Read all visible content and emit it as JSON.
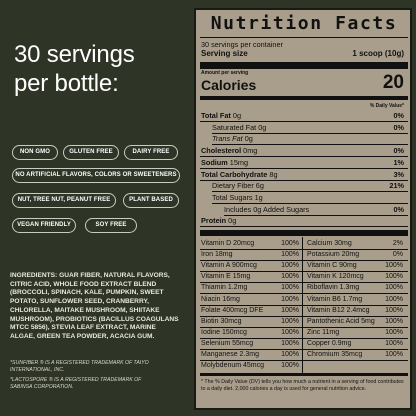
{
  "left": {
    "headline_line1": "30 servings",
    "headline_line2": "per bottle:",
    "badges": [
      "NON GMO",
      "GLUTEN FREE",
      "DAIRY FREE",
      "NO ARTIFICIAL FLAVORS, COLORS OR SWEETENERS",
      "NUT, TREE NUT, PEANUT FREE",
      "PLANT BASED",
      "VEGAN FRIENDLY",
      "SOY FREE"
    ],
    "ingredients": "INGREDIENTS: GUAR FIBER, NATURAL FLAVORS, CITRIC ACID, WHOLE FOOD EXTRACT BLEND (BROCCOLI, SPINACH, KALE, PUMPKIN, SWEET POTATO, SUNFLOWER SEED, CRANBERRY, CHLORELLA, MAITAKE MUSHROOM, SHIITAKE MUSHROOM), PROBIOTICS (BACILLUS COAGULANS MTCC 5856), STEVIA LEAF EXTRACT, MARINE ALGAE, GREEN TEA POWDER, ACACIA GUM.",
    "trademark1": "*SUNFIBER ® IS A REGISTERED TRADEMARK OF TAIYO INTERNATIONAL, INC.",
    "trademark2": "*LACTOSPORE ® IS A REGISTERED TRADEMARK OF SABINSA CORPORATION."
  },
  "panel": {
    "title": "Nutrition Facts",
    "servings_per_container": "30 servings per container",
    "serving_size_label": "Serving size",
    "serving_size_value": "1 scoop (10g)",
    "amount_per_serving": "Amount per serving",
    "calories_label": "Calories",
    "calories_value": "20",
    "dv_header": "% Daily Value*",
    "rows": [
      {
        "label": "Total Fat",
        "amount": "0g",
        "dv": "0%",
        "bold": true,
        "indent": 0
      },
      {
        "label": "Saturated Fat",
        "amount": "0g",
        "dv": "0%",
        "bold": false,
        "indent": 1
      },
      {
        "label": "Trans Fat",
        "amount": "0g",
        "dv": "",
        "bold": false,
        "indent": 1,
        "italic": true
      },
      {
        "label": "Cholesterol",
        "amount": "0mg",
        "dv": "0%",
        "bold": true,
        "indent": 0
      },
      {
        "label": "Sodium",
        "amount": "15mg",
        "dv": "1%",
        "bold": true,
        "indent": 0
      },
      {
        "label": "Total Carbohydrate",
        "amount": "8g",
        "dv": "3%",
        "bold": true,
        "indent": 0
      },
      {
        "label": "Dietary Fiber",
        "amount": "6g",
        "dv": "21%",
        "bold": false,
        "indent": 1
      },
      {
        "label": "Total Sugars",
        "amount": "1g",
        "dv": "",
        "bold": false,
        "indent": 1
      },
      {
        "label": "Includes",
        "amount": "0g Added Sugars",
        "dv": "0%",
        "bold": false,
        "indent": 2
      },
      {
        "label": "Protein",
        "amount": "0g",
        "dv": "",
        "bold": true,
        "indent": 0
      }
    ],
    "vitamins": [
      [
        "Vitamin D 20mcg",
        "100%",
        "Calcium 30mg",
        "2%"
      ],
      [
        "Iron 18mg",
        "100%",
        "Potassium 20mg",
        "0%"
      ],
      [
        "Vitamin A 900mcg",
        "100%",
        "Vitamin C 90mg",
        "100%"
      ],
      [
        "Vitamin E 15mg",
        "100%",
        "Vitamin K 120mcg",
        "100%"
      ],
      [
        "Thiamin 1.2mg",
        "100%",
        "Riboflavin 1.3mg",
        "100%"
      ],
      [
        "Niacin 16mg",
        "100%",
        "Vitamin B6 1.7mg",
        "100%"
      ],
      [
        "Folate 400mcg DFE",
        "100%",
        "Vitamin B12 2.4mcg",
        "100%"
      ],
      [
        "Biotin 30mcg",
        "100%",
        "Pantothenic Acid 5mg",
        "100%"
      ],
      [
        "Iodine 150mcg",
        "100%",
        "Zinc 11mg",
        "100%"
      ],
      [
        "Selenium 55mcg",
        "100%",
        "Copper 0.9mg",
        "100%"
      ],
      [
        "Manganese 2.3mg",
        "100%",
        "Chromium 35mcg",
        "100%"
      ],
      [
        "Molybdenum 45mcg",
        "100%",
        "",
        ""
      ]
    ],
    "footnote": "* The % Daily Value (DV) tells you how much a nutrient in a serving of food contributes to a daily diet. 2,000 calories a day is used for general nutrition advice."
  }
}
